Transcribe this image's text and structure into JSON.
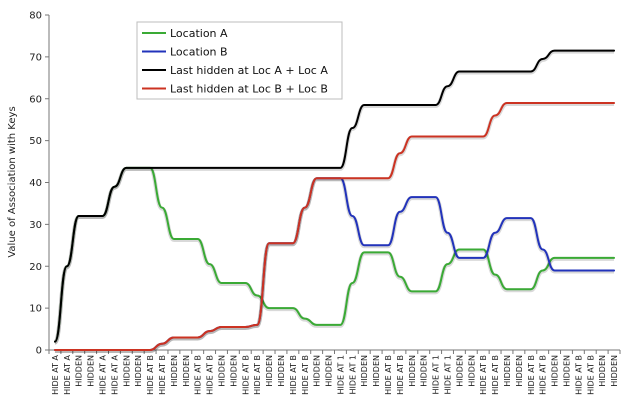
{
  "chart_data": {
    "type": "line",
    "title": "",
    "xlabel": "",
    "ylabel": "Value of Association with Keys",
    "ylim": [
      0,
      80
    ],
    "yticks": [
      0,
      10,
      20,
      30,
      40,
      50,
      60,
      70,
      80
    ],
    "grid": false,
    "legend_position": "top-left",
    "categories": [
      "HIDE AT A",
      "HIDE AT A",
      "HIDDEN",
      "HIDDEN",
      "HIDE AT A",
      "HIDE AT A",
      "HIDDEN",
      "HIDDEN",
      "HIDE AT B",
      "HIDE AT B",
      "HIDDEN",
      "HIDDEN",
      "HIDE AT B",
      "HIDE AT B",
      "HIDDEN",
      "HIDDEN",
      "HIDE AT B",
      "HIDE AT B",
      "HIDDEN",
      "HIDDEN",
      "HIDE AT B",
      "HIDE AT B",
      "HIDDEN",
      "HIDDEN",
      "HIDE AT 1",
      "HIDE AT 1",
      "HIDDEN",
      "HIDDEN",
      "HIDE AT B",
      "HIDE AT B",
      "HIDDEN",
      "HIDDEN",
      "HIDE AT 1",
      "HIDE AT 1",
      "HIDDEN",
      "HIDDEN",
      "HIDE AT B",
      "HIDE AT B",
      "HIDDEN",
      "HIDDEN",
      "HIDE AT B",
      "HIDE AT B",
      "HIDDEN",
      "HIDDEN",
      "HIDE AT B",
      "HIDE AT B",
      "HIDDEN",
      "HIDDEN"
    ],
    "series": [
      {
        "name": "Location A",
        "color": "#3aaa35",
        "values": [
          2,
          20,
          32,
          32,
          32,
          39,
          43.5,
          43.5,
          43.5,
          34,
          26.5,
          26.5,
          26.5,
          20.5,
          16,
          16,
          16,
          13,
          10,
          10,
          10,
          7.5,
          6,
          6,
          6,
          16,
          23.3,
          23.3,
          23.3,
          17.5,
          14,
          14,
          14,
          20.5,
          24,
          24,
          24,
          18,
          14.5,
          14.5,
          14.5,
          19,
          22,
          22,
          22,
          22,
          22,
          22
        ]
      },
      {
        "name": "Location B",
        "color": "#2233bb",
        "values": [
          0,
          0,
          0,
          0,
          0,
          0,
          0,
          0,
          0,
          1.5,
          3,
          3,
          3,
          4.5,
          5.5,
          5.5,
          5.5,
          6,
          25.5,
          25.5,
          25.5,
          34,
          41,
          41,
          41,
          32,
          25,
          25,
          25,
          33,
          36.5,
          36.5,
          36.5,
          28,
          22,
          22,
          22,
          28,
          31.5,
          31.5,
          31.5,
          24,
          19,
          19,
          19,
          19,
          19,
          19
        ]
      },
      {
        "name": "Last hidden at Loc A + Loc A",
        "color": "#000000",
        "values": [
          2,
          20,
          32,
          32,
          32,
          39,
          43.5,
          43.5,
          43.5,
          43.5,
          43.5,
          43.5,
          43.5,
          43.5,
          43.5,
          43.5,
          43.5,
          43.5,
          43.5,
          43.5,
          43.5,
          43.5,
          43.5,
          43.5,
          43.5,
          53,
          58.5,
          58.5,
          58.5,
          58.5,
          58.5,
          58.5,
          58.5,
          63,
          66.5,
          66.5,
          66.5,
          66.5,
          66.5,
          66.5,
          66.5,
          69.5,
          71.5,
          71.5,
          71.5,
          71.5,
          71.5,
          71.5
        ]
      },
      {
        "name": "Last hidden at Loc B + Loc B",
        "color": "#cc3322",
        "values": [
          0,
          0,
          0,
          0,
          0,
          0,
          0,
          0,
          0,
          1.5,
          3,
          3,
          3,
          4.5,
          5.5,
          5.5,
          5.5,
          6,
          25.5,
          25.5,
          25.5,
          34,
          41,
          41,
          41,
          41,
          41,
          41,
          41,
          47,
          51,
          51,
          51,
          51,
          51,
          51,
          51,
          56,
          59,
          59,
          59,
          59,
          59,
          59,
          59,
          59,
          59,
          59
        ]
      }
    ]
  }
}
